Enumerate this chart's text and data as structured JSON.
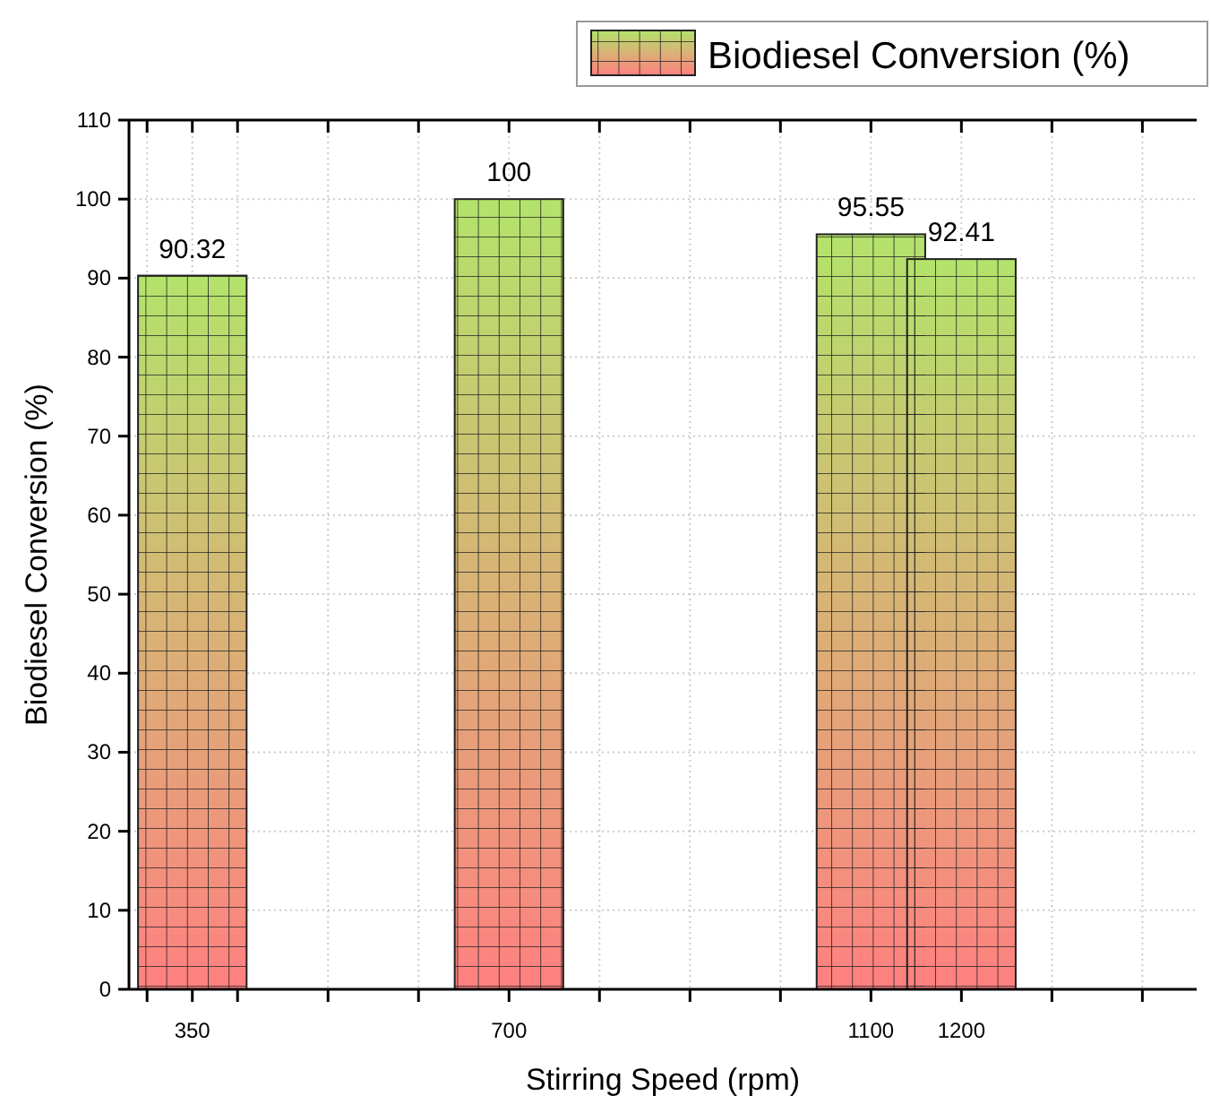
{
  "chart_data": {
    "type": "bar",
    "xlabel": "Stirring Speed (rpm)",
    "ylabel": "Biodiesel Conversion (%)",
    "x": [
      350,
      700,
      1100,
      1200
    ],
    "series": [
      {
        "name": "Biodiesel Conversion (%)",
        "color": "#b3e36b",
        "values": [
          90.32,
          100,
          95.55,
          92.41
        ]
      }
    ],
    "xlim": [
      280,
      1460
    ],
    "xticks": [
      {
        "value": 300,
        "label": null
      },
      {
        "value": 350,
        "label": "350"
      },
      {
        "value": 400,
        "label": null
      },
      {
        "value": 500,
        "label": null
      },
      {
        "value": 600,
        "label": null
      },
      {
        "value": 700,
        "label": "700"
      },
      {
        "value": 800,
        "label": null
      },
      {
        "value": 900,
        "label": null
      },
      {
        "value": 1000,
        "label": null
      },
      {
        "value": 1100,
        "label": "1100"
      },
      {
        "value": 1200,
        "label": "1200"
      },
      {
        "value": 1300,
        "label": null
      },
      {
        "value": 1400,
        "label": null
      }
    ],
    "ylim": [
      0,
      110
    ],
    "yticks": [
      0,
      10,
      20,
      30,
      40,
      50,
      60,
      70,
      80,
      90,
      100,
      110
    ],
    "grid": true,
    "legend": "top right",
    "data_labels": true
  }
}
